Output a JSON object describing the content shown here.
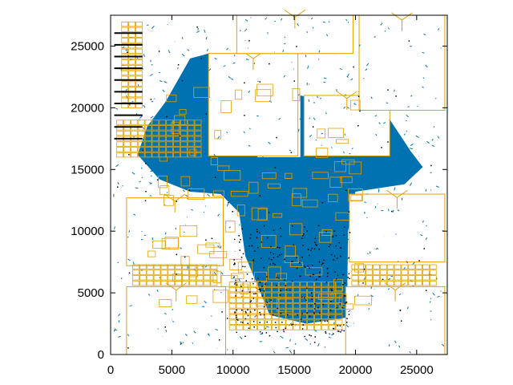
{
  "chart_data": {
    "type": "scatter",
    "title": "",
    "xlabel": "",
    "ylabel": "",
    "xlim": [
      0,
      27500
    ],
    "ylim": [
      0,
      27500
    ],
    "xticks": [
      0,
      5000,
      10000,
      15000,
      20000,
      25000
    ],
    "yticks": [
      0,
      5000,
      10000,
      15000,
      20000,
      25000
    ],
    "grid": false,
    "legend": "none",
    "colors": {
      "macro_outline": "#e69f00",
      "route": "#0072b2",
      "pin": "#000000",
      "frame": "#000000"
    },
    "macro_blocks": [
      {
        "x": 1300,
        "y": 0,
        "w": 8100,
        "h": 5500
      },
      {
        "x": 19200,
        "y": 0,
        "w": 8100,
        "h": 5500
      },
      {
        "x": 1300,
        "y": 7200,
        "w": 7900,
        "h": 5500
      },
      {
        "x": 19500,
        "y": 7500,
        "w": 7800,
        "h": 5500
      },
      {
        "x": 8000,
        "y": 16100,
        "w": 7300,
        "h": 8300
      },
      {
        "x": 15800,
        "y": 16100,
        "w": 7000,
        "h": 4900
      },
      {
        "x": 10300,
        "y": 24400,
        "w": 9500,
        "h": 3100
      },
      {
        "x": 20300,
        "y": 19800,
        "w": 7000,
        "h": 7700
      }
    ],
    "macro_row_bands": [
      {
        "x": 1800,
        "y": 5600,
        "w": 7300,
        "h": 1700
      },
      {
        "x": 19700,
        "y": 5600,
        "w": 7300,
        "h": 1700
      },
      {
        "x": 9700,
        "y": 2000,
        "w": 9400,
        "h": 4000
      },
      {
        "x": 500,
        "y": 16000,
        "w": 7000,
        "h": 3000
      },
      {
        "x": 900,
        "y": 20000,
        "w": 2200,
        "h": 7200
      }
    ]
  }
}
